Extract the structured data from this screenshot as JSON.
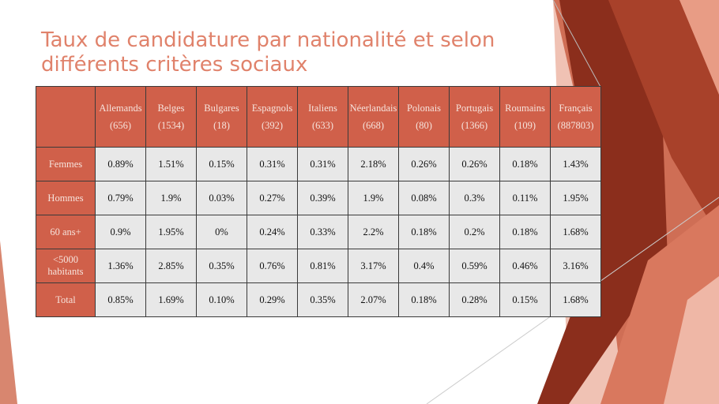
{
  "slide": {
    "title_lines": [
      "Taux de candidature par nationalité et selon",
      "différents critères sociaux"
    ]
  },
  "table": {
    "columns": [
      {
        "name": "Allemands",
        "count": "(656)"
      },
      {
        "name": "Belges",
        "count": "(1534)"
      },
      {
        "name": "Bulgares",
        "count": "(18)"
      },
      {
        "name": "Espagnols",
        "count": "(392)"
      },
      {
        "name": "Italiens",
        "count": "(633)"
      },
      {
        "name": "Néerlandais",
        "count": "(668)"
      },
      {
        "name": "Polonais",
        "count": "(80)"
      },
      {
        "name": "Portugais",
        "count": "(1366)"
      },
      {
        "name": "Roumains",
        "count": "(109)"
      },
      {
        "name": "Français",
        "count": "(887803)"
      }
    ],
    "rows": [
      {
        "label_lines": [
          "Femmes"
        ],
        "cells": [
          "0.89%",
          "1.51%",
          "0.15%",
          "0.31%",
          "0.31%",
          "2.18%",
          "0.26%",
          "0.26%",
          "0.18%",
          "1.43%"
        ]
      },
      {
        "label_lines": [
          "Hommes"
        ],
        "cells": [
          "0.79%",
          "1.9%",
          "0.03%",
          "0.27%",
          "0.39%",
          "1.9%",
          "0.08%",
          "0.3%",
          "0.11%",
          "1.95%"
        ]
      },
      {
        "label_lines": [
          "60 ans+"
        ],
        "cells": [
          "0.9%",
          "1.95%",
          "0%",
          "0.24%",
          "0.33%",
          "2.2%",
          "0.18%",
          "0.2%",
          "0.18%",
          "1.68%"
        ]
      },
      {
        "label_lines": [
          "<5000",
          "habitants"
        ],
        "cells": [
          "1.36%",
          "2.85%",
          "0.35%",
          "0.76%",
          "0.81%",
          "3.17%",
          "0.4%",
          "0.59%",
          "0.46%",
          "3.16%"
        ]
      },
      {
        "label_lines": [
          "Total"
        ],
        "cells": [
          "0.85%",
          "1.69%",
          "0.10%",
          "0.29%",
          "0.35%",
          "2.07%",
          "0.18%",
          "0.28%",
          "0.15%",
          "1.68%"
        ]
      }
    ]
  }
}
